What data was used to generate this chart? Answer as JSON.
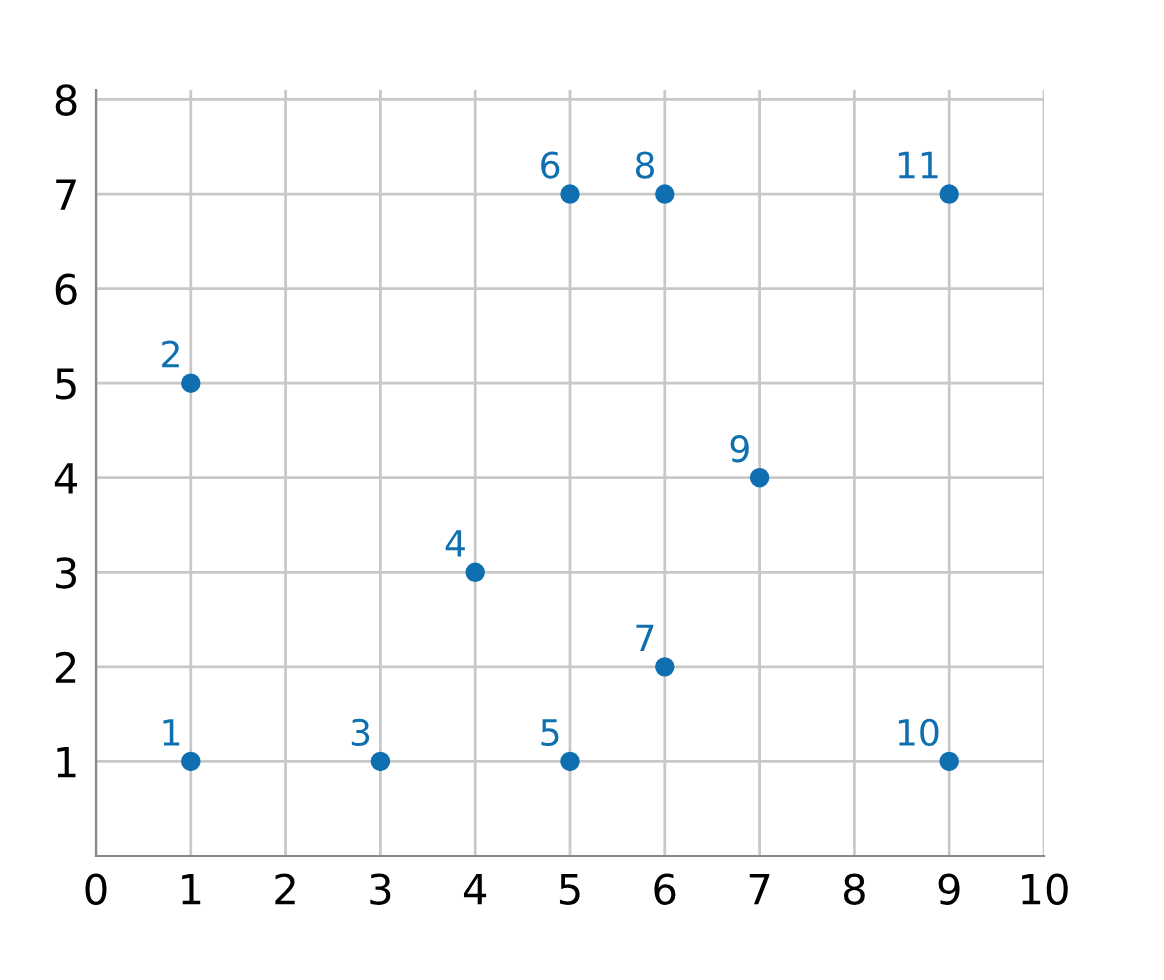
{
  "chart_data": {
    "type": "scatter",
    "x": [
      1,
      1,
      3,
      4,
      5,
      5,
      6,
      6,
      7,
      9,
      9
    ],
    "values": [
      1,
      5,
      1,
      3,
      1,
      7,
      2,
      7,
      4,
      1,
      7
    ],
    "color": "#0f6fb0",
    "xlim": [
      0,
      10
    ],
    "ylim": [
      0,
      8.1
    ],
    "xticks": [
      0,
      1,
      2,
      3,
      4,
      5,
      6,
      7,
      8,
      9,
      10
    ],
    "yticks": [
      1,
      2,
      3,
      4,
      5,
      6,
      7,
      8
    ],
    "grid": true,
    "marker": "circle",
    "annotations": [
      {
        "text": "1",
        "x": 1,
        "y": 1
      },
      {
        "text": "2",
        "x": 1,
        "y": 5
      },
      {
        "text": "3",
        "x": 3,
        "y": 1
      },
      {
        "text": "4",
        "x": 4,
        "y": 3
      },
      {
        "text": "5",
        "x": 5,
        "y": 1
      },
      {
        "text": "6",
        "x": 5,
        "y": 7
      },
      {
        "text": "7",
        "x": 6,
        "y": 2
      },
      {
        "text": "8",
        "x": 6,
        "y": 7
      },
      {
        "text": "9",
        "x": 7,
        "y": 4
      },
      {
        "text": "10",
        "x": 9,
        "y": 1
      },
      {
        "text": "11",
        "x": 9,
        "y": 7
      }
    ]
  }
}
